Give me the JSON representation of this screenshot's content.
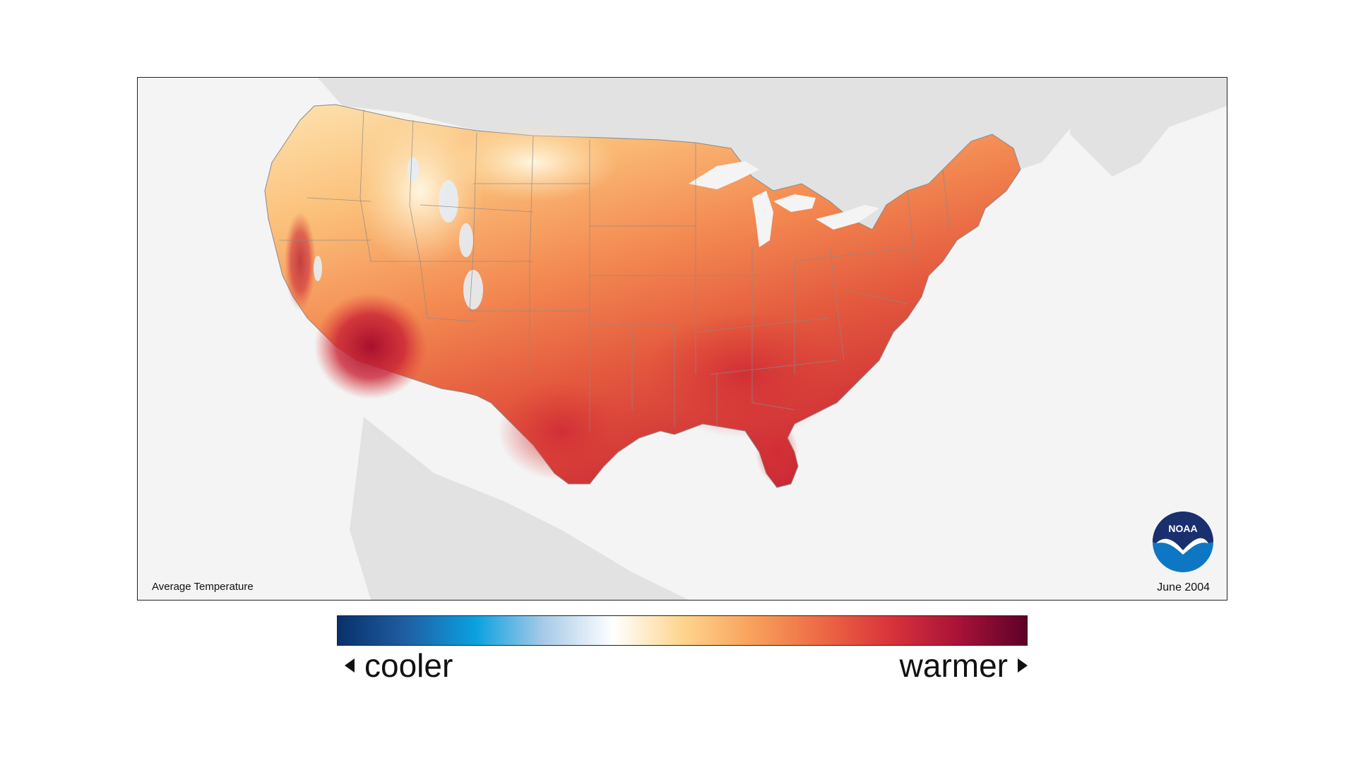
{
  "map": {
    "title": "Average Temperature",
    "date": "June 2004",
    "logo_text": "NOAA",
    "colors": {
      "ocean": "#f4f4f4",
      "neighbor_land": "#e2e2e2",
      "state_border": "#8a8a8a",
      "cool_region": "#fde6b8",
      "mild_region": "#fbb86a",
      "warm_region": "#f07a48",
      "hot_region": "#dd3e35",
      "hottest_region": "#b1152f",
      "snow_peaks": "#e6eef6"
    }
  },
  "legend": {
    "low_label": "cooler",
    "high_label": "warmer",
    "gradient_stops": [
      "#08306b",
      "#1f5fa3",
      "#0aa1e0",
      "#a9cbe8",
      "#ffffff",
      "#fdd58e",
      "#f8a25c",
      "#ee6a45",
      "#d9343a",
      "#a91238",
      "#5e0128"
    ]
  }
}
